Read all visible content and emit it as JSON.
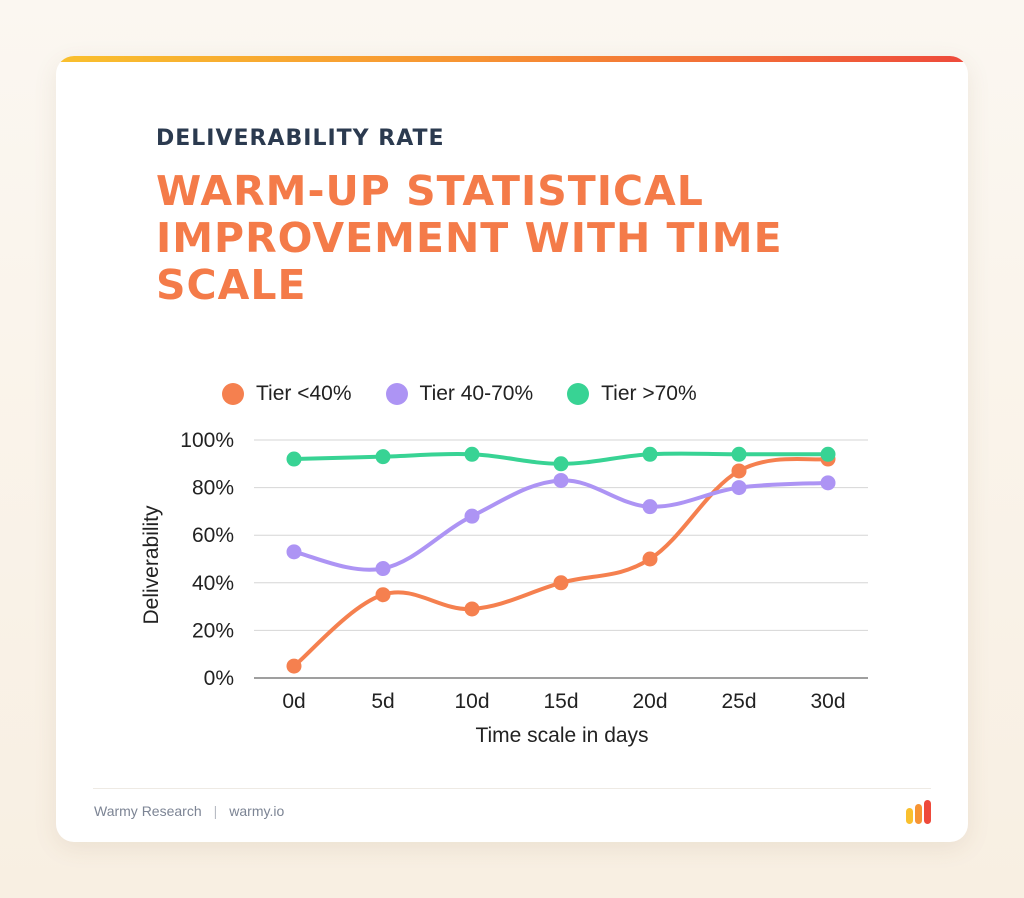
{
  "header": {
    "kicker": "DELIVERABILITY RATE",
    "title": "WARM-UP STATISTICAL IMPROVEMENT WITH TIME SCALE"
  },
  "colors": {
    "accent_orange": "#f47b49",
    "accent_bar": [
      "#f9c02e",
      "#f79433",
      "#ee4a3b"
    ],
    "kicker": "#2b3a4f"
  },
  "chart_data": {
    "type": "line",
    "title": "",
    "xlabel": "Time scale in days",
    "ylabel": "Deliverability",
    "categories": [
      "0d",
      "5d",
      "10d",
      "15d",
      "20d",
      "25d",
      "30d"
    ],
    "ylim": [
      0,
      100
    ],
    "yticks": [
      0,
      20,
      40,
      60,
      80,
      100
    ],
    "ytick_labels": [
      "0%",
      "20%",
      "40%",
      "60%",
      "80%",
      "100%"
    ],
    "grid": true,
    "legend_position": "top",
    "smooth": true,
    "series": [
      {
        "name": "Tier <40%",
        "color": "#f5804f",
        "values": [
          5,
          35,
          29,
          40,
          50,
          87,
          92
        ]
      },
      {
        "name": "Tier 40-70%",
        "color": "#ad94f4",
        "values": [
          53,
          46,
          68,
          83,
          72,
          80,
          82
        ]
      },
      {
        "name": "Tier >70%",
        "color": "#38d394",
        "values": [
          92,
          93,
          94,
          90,
          94,
          94,
          94
        ]
      }
    ]
  },
  "footer": {
    "source": "Warmy Research",
    "separator": "|",
    "site": "warmy.io"
  },
  "logo": {
    "icon": "warmy-bars-logo",
    "colors": [
      "#f9c02e",
      "#f79433",
      "#ee4a3b"
    ]
  }
}
